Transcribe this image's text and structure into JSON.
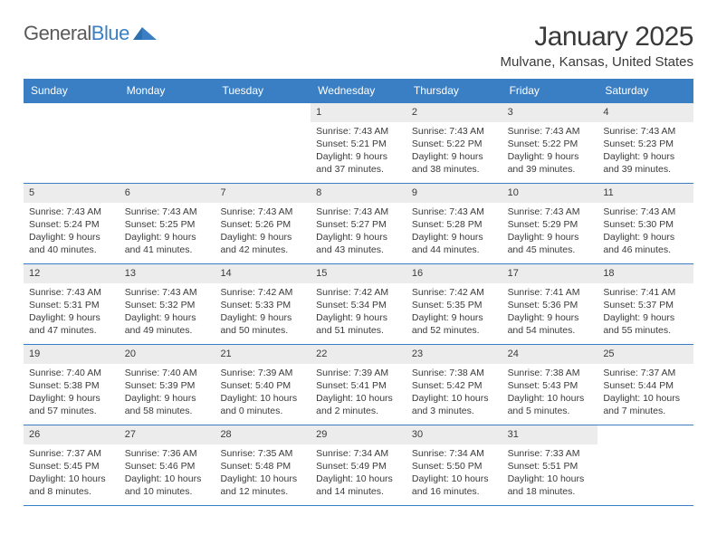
{
  "logo": {
    "text_general": "General",
    "text_blue": "Blue"
  },
  "title": "January 2025",
  "location": "Mulvane, Kansas, United States",
  "colors": {
    "header_bg": "#3a7fc4",
    "header_text": "#ffffff",
    "row_border": "#3a7fc4",
    "daynum_bg": "#ececec",
    "text": "#3a3a3a",
    "page_bg": "#ffffff"
  },
  "typography": {
    "title_fontsize": 30,
    "location_fontsize": 15,
    "header_fontsize": 12,
    "daynum_fontsize": 11,
    "body_fontsize": 10.5
  },
  "weekdays": [
    "Sunday",
    "Monday",
    "Tuesday",
    "Wednesday",
    "Thursday",
    "Friday",
    "Saturday"
  ],
  "weeks": [
    [
      null,
      null,
      null,
      {
        "n": "1",
        "sunrise": "7:43 AM",
        "sunset": "5:21 PM",
        "daylight": "9 hours and 37 minutes."
      },
      {
        "n": "2",
        "sunrise": "7:43 AM",
        "sunset": "5:22 PM",
        "daylight": "9 hours and 38 minutes."
      },
      {
        "n": "3",
        "sunrise": "7:43 AM",
        "sunset": "5:22 PM",
        "daylight": "9 hours and 39 minutes."
      },
      {
        "n": "4",
        "sunrise": "7:43 AM",
        "sunset": "5:23 PM",
        "daylight": "9 hours and 39 minutes."
      }
    ],
    [
      {
        "n": "5",
        "sunrise": "7:43 AM",
        "sunset": "5:24 PM",
        "daylight": "9 hours and 40 minutes."
      },
      {
        "n": "6",
        "sunrise": "7:43 AM",
        "sunset": "5:25 PM",
        "daylight": "9 hours and 41 minutes."
      },
      {
        "n": "7",
        "sunrise": "7:43 AM",
        "sunset": "5:26 PM",
        "daylight": "9 hours and 42 minutes."
      },
      {
        "n": "8",
        "sunrise": "7:43 AM",
        "sunset": "5:27 PM",
        "daylight": "9 hours and 43 minutes."
      },
      {
        "n": "9",
        "sunrise": "7:43 AM",
        "sunset": "5:28 PM",
        "daylight": "9 hours and 44 minutes."
      },
      {
        "n": "10",
        "sunrise": "7:43 AM",
        "sunset": "5:29 PM",
        "daylight": "9 hours and 45 minutes."
      },
      {
        "n": "11",
        "sunrise": "7:43 AM",
        "sunset": "5:30 PM",
        "daylight": "9 hours and 46 minutes."
      }
    ],
    [
      {
        "n": "12",
        "sunrise": "7:43 AM",
        "sunset": "5:31 PM",
        "daylight": "9 hours and 47 minutes."
      },
      {
        "n": "13",
        "sunrise": "7:43 AM",
        "sunset": "5:32 PM",
        "daylight": "9 hours and 49 minutes."
      },
      {
        "n": "14",
        "sunrise": "7:42 AM",
        "sunset": "5:33 PM",
        "daylight": "9 hours and 50 minutes."
      },
      {
        "n": "15",
        "sunrise": "7:42 AM",
        "sunset": "5:34 PM",
        "daylight": "9 hours and 51 minutes."
      },
      {
        "n": "16",
        "sunrise": "7:42 AM",
        "sunset": "5:35 PM",
        "daylight": "9 hours and 52 minutes."
      },
      {
        "n": "17",
        "sunrise": "7:41 AM",
        "sunset": "5:36 PM",
        "daylight": "9 hours and 54 minutes."
      },
      {
        "n": "18",
        "sunrise": "7:41 AM",
        "sunset": "5:37 PM",
        "daylight": "9 hours and 55 minutes."
      }
    ],
    [
      {
        "n": "19",
        "sunrise": "7:40 AM",
        "sunset": "5:38 PM",
        "daylight": "9 hours and 57 minutes."
      },
      {
        "n": "20",
        "sunrise": "7:40 AM",
        "sunset": "5:39 PM",
        "daylight": "9 hours and 58 minutes."
      },
      {
        "n": "21",
        "sunrise": "7:39 AM",
        "sunset": "5:40 PM",
        "daylight": "10 hours and 0 minutes."
      },
      {
        "n": "22",
        "sunrise": "7:39 AM",
        "sunset": "5:41 PM",
        "daylight": "10 hours and 2 minutes."
      },
      {
        "n": "23",
        "sunrise": "7:38 AM",
        "sunset": "5:42 PM",
        "daylight": "10 hours and 3 minutes."
      },
      {
        "n": "24",
        "sunrise": "7:38 AM",
        "sunset": "5:43 PM",
        "daylight": "10 hours and 5 minutes."
      },
      {
        "n": "25",
        "sunrise": "7:37 AM",
        "sunset": "5:44 PM",
        "daylight": "10 hours and 7 minutes."
      }
    ],
    [
      {
        "n": "26",
        "sunrise": "7:37 AM",
        "sunset": "5:45 PM",
        "daylight": "10 hours and 8 minutes."
      },
      {
        "n": "27",
        "sunrise": "7:36 AM",
        "sunset": "5:46 PM",
        "daylight": "10 hours and 10 minutes."
      },
      {
        "n": "28",
        "sunrise": "7:35 AM",
        "sunset": "5:48 PM",
        "daylight": "10 hours and 12 minutes."
      },
      {
        "n": "29",
        "sunrise": "7:34 AM",
        "sunset": "5:49 PM",
        "daylight": "10 hours and 14 minutes."
      },
      {
        "n": "30",
        "sunrise": "7:34 AM",
        "sunset": "5:50 PM",
        "daylight": "10 hours and 16 minutes."
      },
      {
        "n": "31",
        "sunrise": "7:33 AM",
        "sunset": "5:51 PM",
        "daylight": "10 hours and 18 minutes."
      },
      null
    ]
  ],
  "labels": {
    "sunrise": "Sunrise:",
    "sunset": "Sunset:",
    "daylight": "Daylight:"
  }
}
